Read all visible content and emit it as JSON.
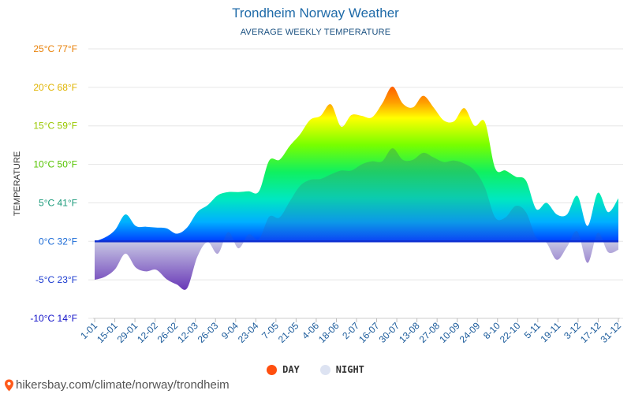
{
  "chart_data": {
    "type": "area",
    "title": "Trondheim Norway Weather",
    "subtitle": "AVERAGE WEEKLY TEMPERATURE",
    "ylabel": "TEMPERATURE",
    "ylim": [
      -10,
      25
    ],
    "y_ticks": [
      {
        "value": 25,
        "label": "25°C 77°F",
        "color": "#e8820a"
      },
      {
        "value": 20,
        "label": "20°C 68°F",
        "color": "#e0b400"
      },
      {
        "value": 15,
        "label": "15°C 59°F",
        "color": "#9ac800"
      },
      {
        "value": 10,
        "label": "10°C 50°F",
        "color": "#55c400"
      },
      {
        "value": 5,
        "label": "5°C 41°F",
        "color": "#1a9a7a"
      },
      {
        "value": 0,
        "label": "0°C 32°F",
        "color": "#1a6ad6"
      },
      {
        "value": -5,
        "label": "-5°C 23°F",
        "color": "#1a3ad0"
      },
      {
        "value": -10,
        "label": "-10°C 14°F",
        "color": "#1010c8"
      }
    ],
    "x_tick_labels": [
      "1-01",
      "15-01",
      "29-01",
      "12-02",
      "26-02",
      "12-03",
      "26-03",
      "9-04",
      "23-04",
      "7-05",
      "21-05",
      "4-06",
      "18-06",
      "2-07",
      "16-07",
      "30-07",
      "13-08",
      "27-08",
      "10-09",
      "24-09",
      "8-10",
      "22-10",
      "5-11",
      "19-11",
      "3-12",
      "17-12",
      "31-12"
    ],
    "series": [
      {
        "name": "DAY",
        "values": [
          0,
          0.5,
          1.5,
          3.5,
          2,
          1.9,
          1.8,
          1.7,
          1,
          1.8,
          3.8,
          4.7,
          6,
          6.4,
          6.4,
          6.5,
          6.5,
          10.5,
          10.6,
          12.4,
          13.9,
          15.8,
          16.3,
          17.8,
          14.9,
          16.4,
          16.3,
          16.1,
          17.9,
          20.1,
          17.9,
          17.4,
          18.9,
          17.4,
          15.7,
          15.6,
          17.3,
          15,
          15.5,
          9.5,
          9.2,
          8.4,
          7.9,
          4.2,
          5,
          3.5,
          3.5,
          5.9,
          2,
          6.3,
          3.8,
          5.6
        ],
        "color": "#ff5a1a"
      },
      {
        "name": "NIGHT",
        "values": [
          -5,
          -4.6,
          -3.6,
          -1.6,
          -3.4,
          -3.9,
          -3.7,
          -4.9,
          -5.6,
          -6.1,
          -2,
          -0.1,
          -1.6,
          1.2,
          -0.9,
          0.9,
          0.3,
          3.2,
          3.1,
          5.2,
          7.2,
          8,
          8.1,
          8.7,
          9.2,
          9.2,
          10,
          10.4,
          10.4,
          12.1,
          10.6,
          10.6,
          11.5,
          10.9,
          10.3,
          10.5,
          10.1,
          9.2,
          7,
          3.1,
          3.1,
          4.6,
          3.8,
          0.5,
          -0.2,
          -2.4,
          -0.7,
          1.3,
          -2.8,
          1.1,
          -1.4,
          -1.1
        ],
        "color": "#dde3f2"
      }
    ]
  },
  "source": {
    "text": "hikersbay.com/climate/norway/trondheim"
  }
}
